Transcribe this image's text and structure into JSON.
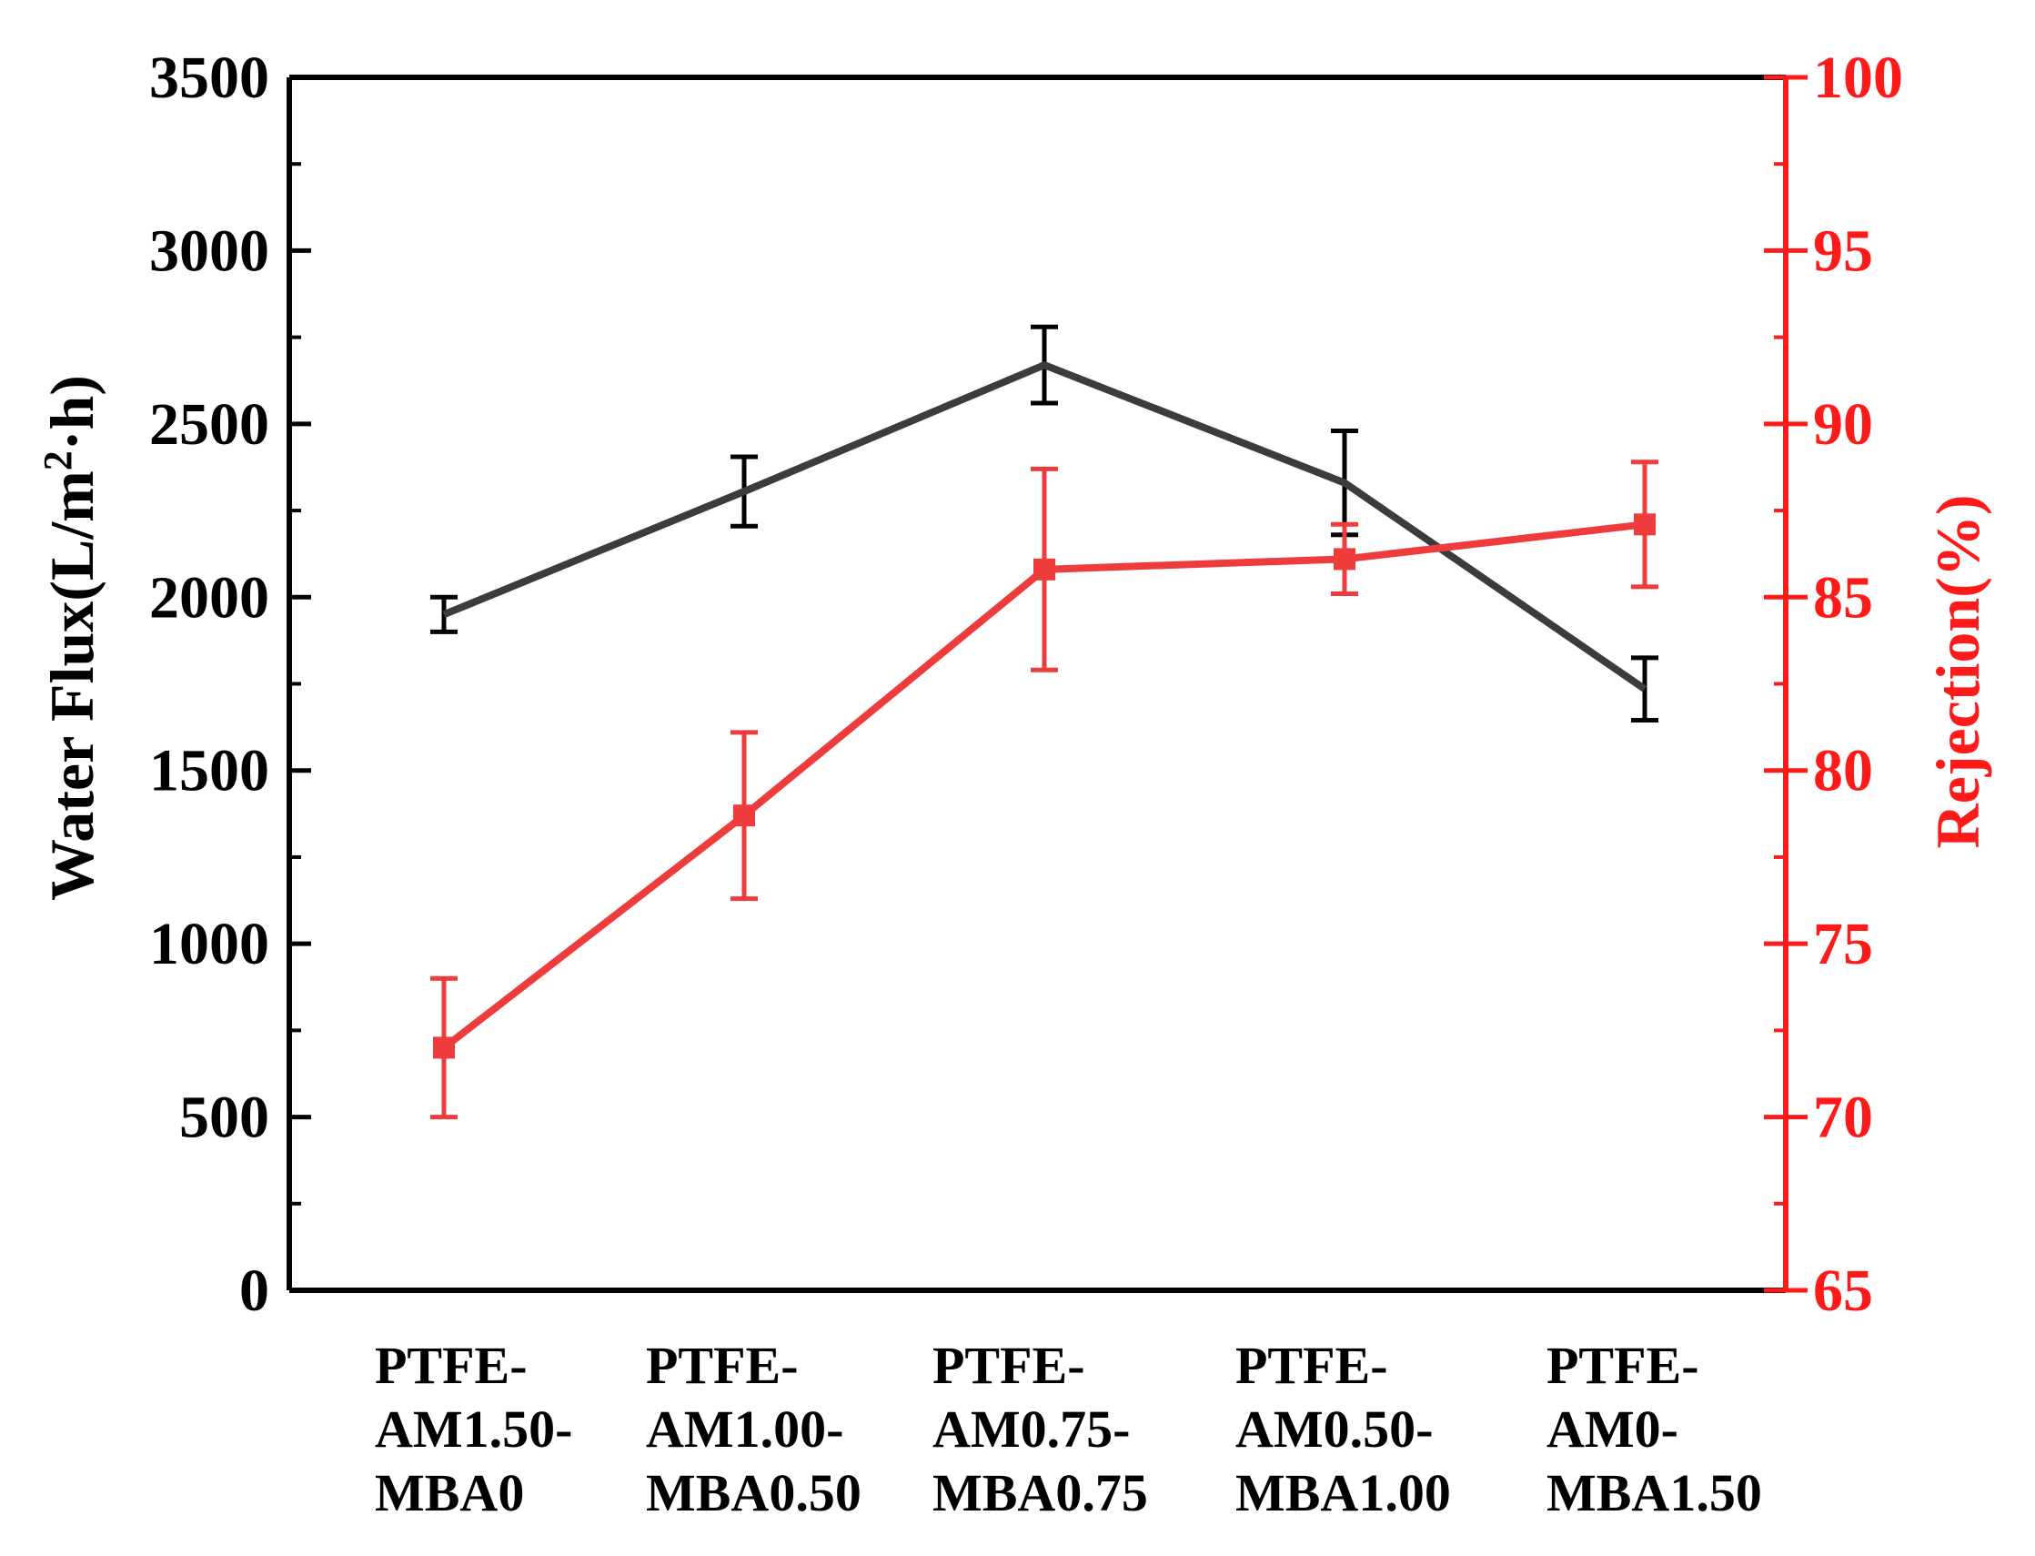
{
  "chart_data": {
    "type": "line",
    "categories": [
      [
        "PTFE-",
        "AM1.50-",
        "MBA0"
      ],
      [
        "PTFE-",
        "AM1.00-",
        "MBA0.50"
      ],
      [
        "PTFE-",
        "AM0.75-",
        "MBA0.75"
      ],
      [
        "PTFE-",
        "AM0.50-",
        "MBA1.00"
      ],
      [
        "PTFE-",
        "AM0-",
        "MBA1.50"
      ]
    ],
    "y_left": {
      "label_main": "Water Flux(L/m",
      "label_sup": "2",
      "label_tail": "·h)",
      "range": [
        0,
        3500
      ],
      "ticks": [
        0,
        500,
        1000,
        1500,
        2000,
        2500,
        3000,
        3500
      ],
      "color": "#000000"
    },
    "y_right": {
      "label": "Rejection(%)",
      "range": [
        65,
        100
      ],
      "ticks": [
        65,
        70,
        75,
        80,
        85,
        90,
        95,
        100
      ],
      "color": "#ff1a1a"
    },
    "series": [
      {
        "name": "Water Flux",
        "axis": "left",
        "color": "#3c3c3c",
        "error_color": "#000000",
        "values": [
          1950,
          2305,
          2670,
          2330,
          1735
        ],
        "errors": [
          50,
          100,
          110,
          150,
          90
        ]
      },
      {
        "name": "Rejection",
        "axis": "right",
        "color": "#ee3b3b",
        "error_color": "#ee3b3b",
        "values": [
          72.0,
          78.7,
          85.8,
          86.1,
          87.1
        ],
        "errors": [
          2.0,
          2.4,
          2.9,
          1.0,
          1.8
        ]
      }
    ]
  }
}
